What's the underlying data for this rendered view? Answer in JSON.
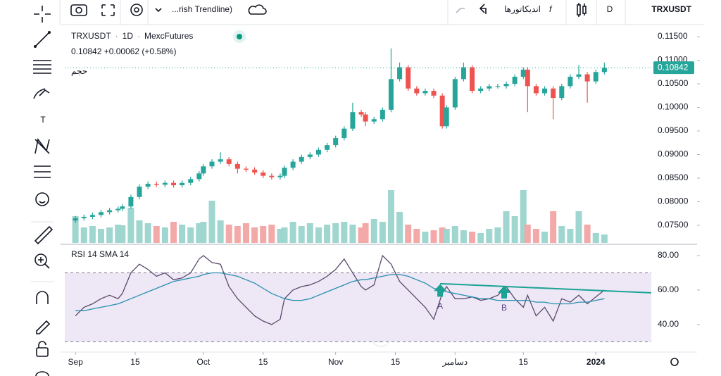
{
  "toolbar": {
    "indicator_name": "...rish Trendline)",
    "indicators": "اندیکاتورها",
    "interval_button": "D",
    "symbol": "TRXUSDT"
  },
  "chart_data": [
    {
      "type": "candlestick",
      "symbol": "TRXUSDT",
      "interval": "1D",
      "exchange": "MexcFutures",
      "quote": "0.10842 +0.00062 (+0.58%)",
      "volume_label": "حجم",
      "up_color": "#26a69a",
      "down_color": "#ef5350",
      "volume_up_color": "#9fd6cf",
      "volume_down_color": "#f2a9a8",
      "x": [
        0,
        2,
        4,
        6,
        8,
        10,
        11,
        13,
        15,
        17,
        19,
        21,
        23,
        25,
        27,
        29,
        30,
        32,
        34,
        36,
        38,
        40,
        42,
        44,
        46,
        48,
        49,
        51,
        53,
        55,
        57,
        59,
        61,
        63,
        65,
        67,
        68,
        70,
        72,
        74,
        76,
        78,
        80,
        82,
        84,
        86,
        87,
        89,
        91,
        93,
        95,
        97,
        99,
        101,
        103,
        105,
        106,
        108,
        110,
        112,
        114,
        116,
        118,
        120,
        122,
        124
      ],
      "open": [
        0.076,
        0.0765,
        0.0768,
        0.0772,
        0.0778,
        0.0782,
        0.0785,
        0.079,
        0.081,
        0.0832,
        0.0838,
        0.0836,
        0.084,
        0.0835,
        0.084,
        0.0848,
        0.086,
        0.0875,
        0.0885,
        0.089,
        0.088,
        0.087,
        0.0868,
        0.0862,
        0.0855,
        0.0852,
        0.0855,
        0.0872,
        0.0885,
        0.0895,
        0.09,
        0.091,
        0.092,
        0.0935,
        0.0955,
        0.099,
        0.0985,
        0.097,
        0.0975,
        0.0995,
        0.106,
        0.1085,
        0.104,
        0.103,
        0.1035,
        0.1025,
        0.096,
        0.1,
        0.106,
        0.1085,
        0.1035,
        0.104,
        0.1045,
        0.1045,
        0.105,
        0.1065,
        0.108,
        0.1045,
        0.103,
        0.104,
        0.102,
        0.1045,
        0.1065,
        0.107,
        0.1055,
        0.1075
      ],
      "high": [
        0.077,
        0.0773,
        0.0777,
        0.0783,
        0.0787,
        0.079,
        0.0795,
        0.0815,
        0.0837,
        0.0843,
        0.0843,
        0.0845,
        0.0845,
        0.0845,
        0.0853,
        0.0865,
        0.088,
        0.089,
        0.0905,
        0.0895,
        0.0885,
        0.0875,
        0.0873,
        0.0867,
        0.086,
        0.086,
        0.0877,
        0.089,
        0.09,
        0.0905,
        0.0915,
        0.0925,
        0.094,
        0.096,
        0.101,
        0.0995,
        0.099,
        0.098,
        0.1,
        0.1125,
        0.1095,
        0.109,
        0.1045,
        0.104,
        0.104,
        0.103,
        0.1005,
        0.1065,
        0.1095,
        0.109,
        0.1045,
        0.105,
        0.105,
        0.1055,
        0.107,
        0.1085,
        0.1085,
        0.105,
        0.1045,
        0.1045,
        0.105,
        0.107,
        0.109,
        0.1075,
        0.108,
        0.1095
      ],
      "low": [
        0.0755,
        0.076,
        0.0763,
        0.0767,
        0.0773,
        0.0777,
        0.078,
        0.0785,
        0.0805,
        0.0827,
        0.0831,
        0.0831,
        0.083,
        0.083,
        0.0835,
        0.0843,
        0.0855,
        0.087,
        0.088,
        0.0875,
        0.086,
        0.0863,
        0.0857,
        0.085,
        0.0847,
        0.0847,
        0.085,
        0.0867,
        0.088,
        0.089,
        0.0895,
        0.0905,
        0.0915,
        0.093,
        0.095,
        0.098,
        0.096,
        0.0965,
        0.097,
        0.099,
        0.1055,
        0.1035,
        0.1025,
        0.1025,
        0.102,
        0.0955,
        0.0955,
        0.0995,
        0.1055,
        0.103,
        0.103,
        0.1035,
        0.104,
        0.104,
        0.1045,
        0.106,
        0.099,
        0.1025,
        0.1025,
        0.0975,
        0.1015,
        0.104,
        0.106,
        0.101,
        0.105,
        0.107
      ],
      "close": [
        0.0765,
        0.0768,
        0.0772,
        0.0778,
        0.0782,
        0.0785,
        0.079,
        0.081,
        0.0832,
        0.0838,
        0.0836,
        0.084,
        0.0835,
        0.084,
        0.0848,
        0.086,
        0.0875,
        0.0885,
        0.089,
        0.088,
        0.087,
        0.0868,
        0.0862,
        0.0855,
        0.0852,
        0.0855,
        0.0872,
        0.0885,
        0.0895,
        0.09,
        0.091,
        0.092,
        0.0935,
        0.0955,
        0.099,
        0.0985,
        0.097,
        0.0975,
        0.0995,
        0.106,
        0.1085,
        0.104,
        0.103,
        0.1035,
        0.1025,
        0.096,
        0.1,
        0.106,
        0.1085,
        0.1035,
        0.104,
        0.1045,
        0.1045,
        0.105,
        0.1065,
        0.108,
        0.1045,
        0.103,
        0.104,
        0.102,
        0.1045,
        0.1065,
        0.107,
        0.1055,
        0.1075,
        0.1084
      ],
      "volume": [
        38,
        22,
        24,
        20,
        22,
        26,
        25,
        50,
        32,
        28,
        24,
        22,
        30,
        26,
        22,
        28,
        30,
        60,
        32,
        26,
        24,
        28,
        22,
        24,
        26,
        20,
        22,
        30,
        24,
        28,
        22,
        26,
        28,
        30,
        26,
        22,
        28,
        34,
        30,
        75,
        44,
        26,
        20,
        16,
        18,
        22,
        20,
        24,
        18,
        16,
        14,
        20,
        22,
        45,
        38,
        75,
        26,
        20,
        16,
        45,
        24,
        20,
        45,
        26,
        14,
        12
      ],
      "volume_lim": [
        0,
        100
      ],
      "xlim": [
        -2.5,
        135
      ],
      "ylim": [
        0.07127,
        0.11754
      ],
      "yticks": [
        {
          "value": 0.115,
          "label": "0.11500"
        },
        {
          "value": 0.11,
          "label": "0.11000"
        },
        {
          "value": 0.105,
          "label": "0.10500"
        },
        {
          "value": 0.1,
          "label": "0.10000"
        },
        {
          "value": 0.095,
          "label": "0.09500"
        },
        {
          "value": 0.09,
          "label": "0.09000"
        },
        {
          "value": 0.085,
          "label": "0.08500"
        },
        {
          "value": 0.08,
          "label": "0.08000"
        },
        {
          "value": 0.075,
          "label": "0.07500"
        }
      ],
      "xticks": [
        {
          "value": 0,
          "label": "Sep"
        },
        {
          "value": 14,
          "label": "15"
        },
        {
          "value": 30,
          "label": "Oct"
        },
        {
          "value": 44,
          "label": "15"
        },
        {
          "value": 61,
          "label": "Nov"
        },
        {
          "value": 75,
          "label": "15"
        },
        {
          "value": 89,
          "label": "دسامبر"
        },
        {
          "value": 105,
          "label": "15"
        },
        {
          "value": 122,
          "label": "2024"
        }
      ],
      "last_price": {
        "value": 0.10842,
        "label": "0.10842"
      }
    },
    {
      "type": "line",
      "title": "RSI 14 SMA 14",
      "x": [
        0,
        2,
        4,
        6,
        8,
        10,
        11,
        13,
        15,
        17,
        19,
        21,
        23,
        25,
        27,
        29,
        30,
        32,
        34,
        36,
        38,
        40,
        42,
        44,
        46,
        48,
        49,
        51,
        53,
        55,
        57,
        59,
        61,
        63,
        65,
        67,
        68,
        70,
        72,
        74,
        76,
        78,
        80,
        82,
        84,
        86,
        87,
        89,
        91,
        93,
        95,
        97,
        99,
        101,
        103,
        105,
        106,
        108,
        110,
        112,
        114,
        116,
        118,
        120,
        122,
        124
      ],
      "series": [
        {
          "color": "#5b4a6b",
          "values": [
            45,
            50,
            52,
            55,
            57,
            55,
            58,
            70,
            75,
            72,
            68,
            70,
            66,
            67,
            70,
            78,
            80,
            76,
            75,
            62,
            55,
            50,
            45,
            42,
            40,
            43,
            55,
            60,
            62,
            63,
            65,
            68,
            72,
            78,
            70,
            62,
            60,
            63,
            80,
            75,
            65,
            60,
            55,
            50,
            43,
            58,
            62,
            55,
            55,
            56,
            54,
            55,
            57,
            62,
            55,
            50,
            57,
            45,
            50,
            42,
            55,
            53,
            57,
            52,
            56,
            60
          ]
        },
        {
          "color": "#2a8fb0",
          "values": [
            48,
            48,
            49,
            50,
            51,
            52,
            53,
            55,
            57,
            59,
            61,
            63,
            65,
            66,
            67,
            68,
            69,
            70,
            70,
            69,
            68,
            66,
            64,
            61,
            58,
            56,
            55,
            54,
            54,
            55,
            57,
            59,
            61,
            63,
            65,
            66,
            66,
            67,
            68,
            69,
            69,
            68,
            66,
            64,
            61,
            60,
            59,
            58,
            57,
            56,
            55,
            55,
            54,
            54,
            54,
            54,
            54,
            53,
            53,
            52,
            52,
            52,
            53,
            53,
            54,
            55
          ]
        }
      ],
      "xlim": [
        -2.5,
        135
      ],
      "ylim": [
        24,
        84.5
      ],
      "yticks": [
        {
          "value": 80,
          "label": "80.00"
        },
        {
          "value": 60,
          "label": "60.00"
        },
        {
          "value": 40,
          "label": "40.00"
        }
      ],
      "band": [
        30,
        70
      ],
      "band_color": "#ede7f6",
      "trendline": {
        "color": "#1aa394",
        "x": [
          85.5,
          135
        ],
        "y": [
          63.7,
          58.4
        ]
      },
      "annotations": [
        {
          "text": "A",
          "x": 85.5,
          "y": 63.5
        },
        {
          "text": "B",
          "x": 100.5,
          "y": 62.5
        }
      ]
    }
  ]
}
